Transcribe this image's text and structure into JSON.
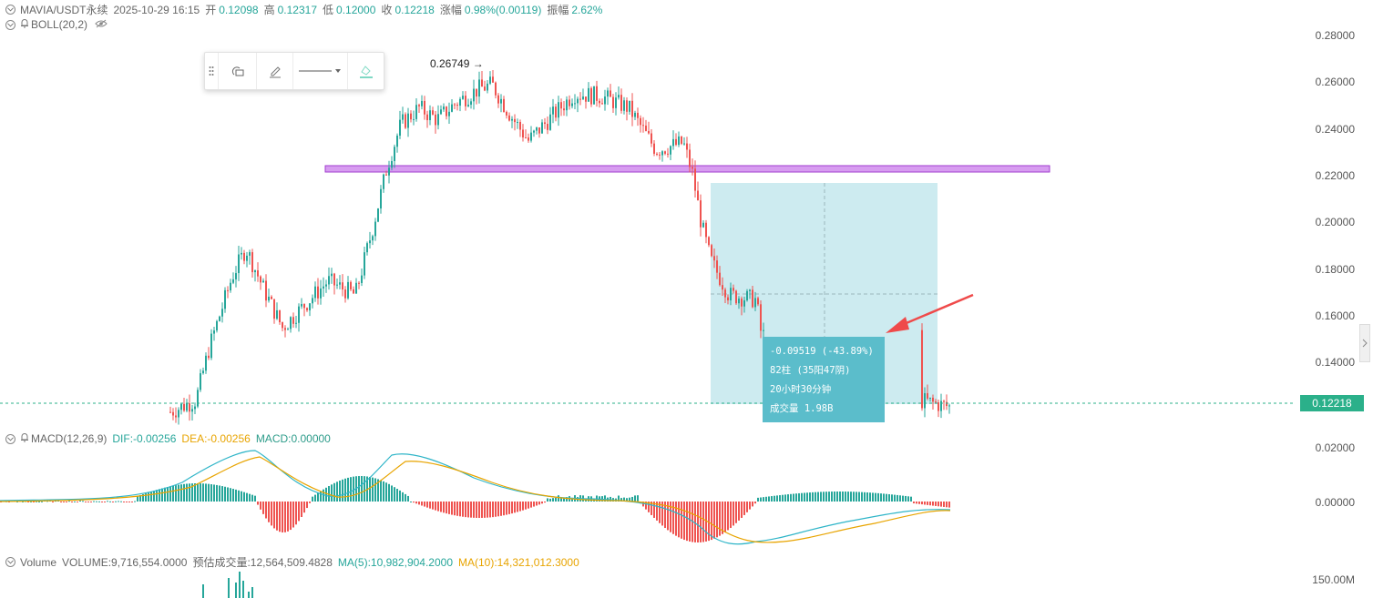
{
  "header": {
    "symbol": "MAVIA/USDT永续",
    "datetime": "2025-10-29 16:15",
    "open_label": "开",
    "open": "0.12098",
    "high_label": "高",
    "high": "0.12317",
    "low_label": "低",
    "low": "0.12000",
    "close_label": "收",
    "close": "0.12218",
    "change_label": "涨幅",
    "change": "0.98%(0.00119)",
    "amplitude_label": "振幅",
    "amplitude": "2.62%"
  },
  "boll": {
    "label": "BOLL(20,2)"
  },
  "macd": {
    "label": "MACD(12,26,9)",
    "dif": "DIF:-0.00256",
    "dea": "DEA:-0.00256",
    "macd": "MACD:0.00000"
  },
  "volume": {
    "label": "Volume",
    "volume": "VOLUME:9,716,554.0000",
    "estimated": "预估成交量:12,564,509.4828",
    "ma5": "MA(5):10,982,904.2000",
    "ma10": "MA(10):14,321,012.3000"
  },
  "price_axis": [
    "0.28000",
    "0.26000",
    "0.24000",
    "0.22000",
    "0.20000",
    "0.18000",
    "0.16000",
    "0.14000",
    "0.02000"
  ],
  "macd_axis": [
    "0.00000"
  ],
  "volume_axis": [
    "150.00M"
  ],
  "current_price": "0.12218",
  "peak_label": "0.26749",
  "measure": {
    "change": "-0.09519 (-43.89%)",
    "bars": "82柱 (35阳47阴)",
    "duration": "20小时30分钟",
    "volume": "成交量 1.98B"
  },
  "colors": {
    "up": "#26a69a",
    "down": "#ef5350",
    "dif": "#2fb5c8",
    "dea": "#e8a400",
    "box": "#c8e9ee",
    "band": "#d79cf0"
  }
}
